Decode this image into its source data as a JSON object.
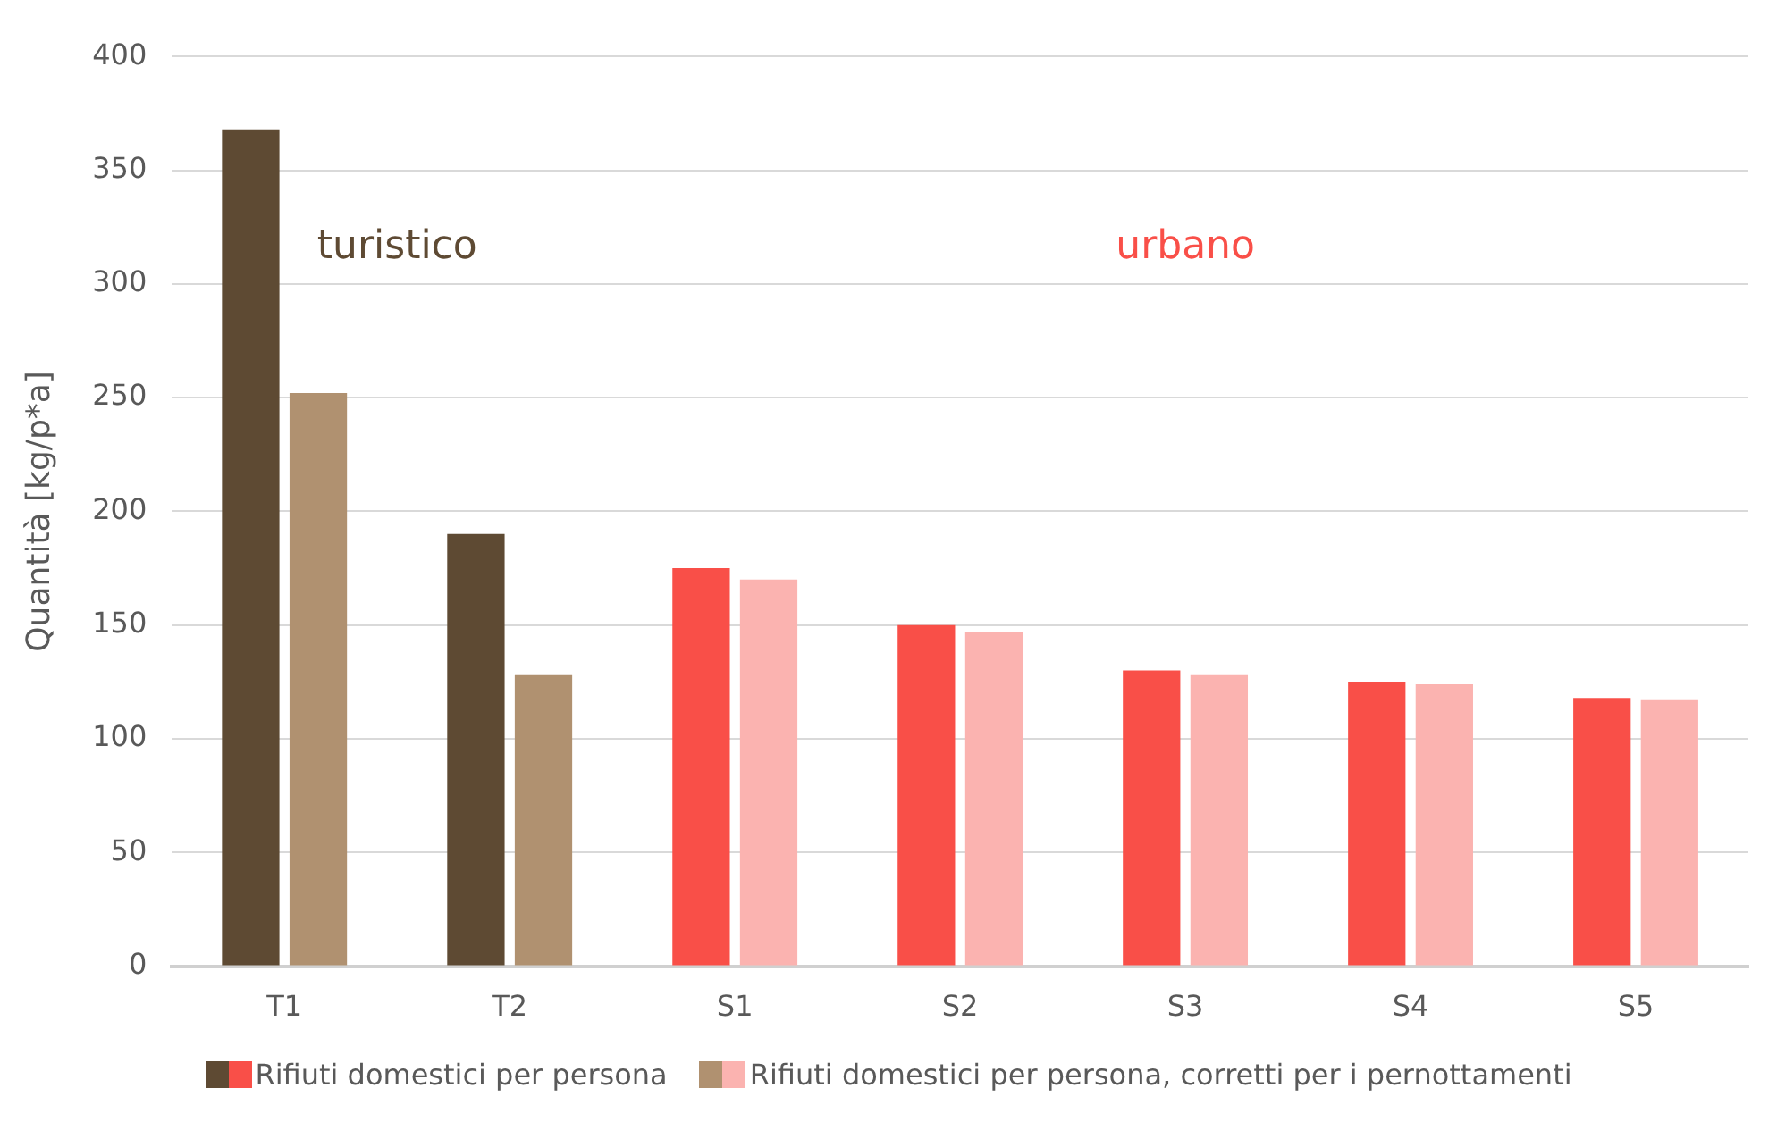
{
  "chart_data": {
    "type": "bar",
    "ylabel": "Quantità [kg/p*a]",
    "categories": [
      "T1",
      "T2",
      "S1",
      "S2",
      "S3",
      "S4",
      "S5"
    ],
    "series": [
      {
        "name": "Rifiuti domestici per persona",
        "colors": [
          "#5e4a33",
          "#5e4a33",
          "#f94f48",
          "#f94f48",
          "#f94f48",
          "#f94f48",
          "#f94f48"
        ],
        "values": [
          368,
          190,
          175,
          150,
          130,
          125,
          118
        ]
      },
      {
        "name": "Rifiuti domestici per persona, corretti per i pernottamenti",
        "colors": [
          "#b09170",
          "#b09170",
          "#fbb3b0",
          "#fbb3b0",
          "#fbb3b0",
          "#fbb3b0",
          "#fbb3b0"
        ],
        "values": [
          252,
          128,
          170,
          147,
          128,
          124,
          117
        ]
      }
    ],
    "ylim": [
      0,
      400
    ],
    "yticks": [
      0,
      50,
      100,
      150,
      200,
      250,
      300,
      350,
      400
    ],
    "grid": "y",
    "legend": "bottom",
    "annotations": [
      "turistico",
      "urbano"
    ]
  }
}
